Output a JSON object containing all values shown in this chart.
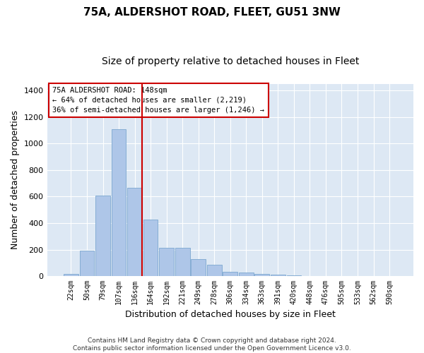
{
  "title": "75A, ALDERSHOT ROAD, FLEET, GU51 3NW",
  "subtitle": "Size of property relative to detached houses in Fleet",
  "xlabel": "Distribution of detached houses by size in Fleet",
  "ylabel": "Number of detached properties",
  "categories": [
    "22sqm",
    "50sqm",
    "79sqm",
    "107sqm",
    "136sqm",
    "164sqm",
    "192sqm",
    "221sqm",
    "249sqm",
    "278sqm",
    "306sqm",
    "334sqm",
    "363sqm",
    "391sqm",
    "420sqm",
    "448sqm",
    "476sqm",
    "505sqm",
    "533sqm",
    "562sqm",
    "590sqm"
  ],
  "values": [
    15,
    190,
    610,
    1110,
    665,
    425,
    215,
    215,
    130,
    85,
    30,
    28,
    15,
    10,
    5,
    2,
    0,
    0,
    0,
    0,
    0
  ],
  "bar_color": "#aec6e8",
  "bar_edgecolor": "#7ba7d0",
  "vline_color": "#cc0000",
  "annotation_text": "75A ALDERSHOT ROAD: 148sqm\n← 64% of detached houses are smaller (2,219)\n36% of semi-detached houses are larger (1,246) →",
  "annotation_box_facecolor": "#ffffff",
  "annotation_box_edgecolor": "#cc0000",
  "ylim": [
    0,
    1450
  ],
  "yticks": [
    0,
    200,
    400,
    600,
    800,
    1000,
    1200,
    1400
  ],
  "bg_color": "#dde8f4",
  "grid_color": "#ffffff",
  "footer_line1": "Contains HM Land Registry data © Crown copyright and database right 2024.",
  "footer_line2": "Contains public sector information licensed under the Open Government Licence v3.0.",
  "title_fontsize": 11,
  "subtitle_fontsize": 10,
  "xlabel_fontsize": 9,
  "ylabel_fontsize": 9,
  "tick_fontsize": 7,
  "annotation_fontsize": 7.5,
  "footer_fontsize": 6.5
}
